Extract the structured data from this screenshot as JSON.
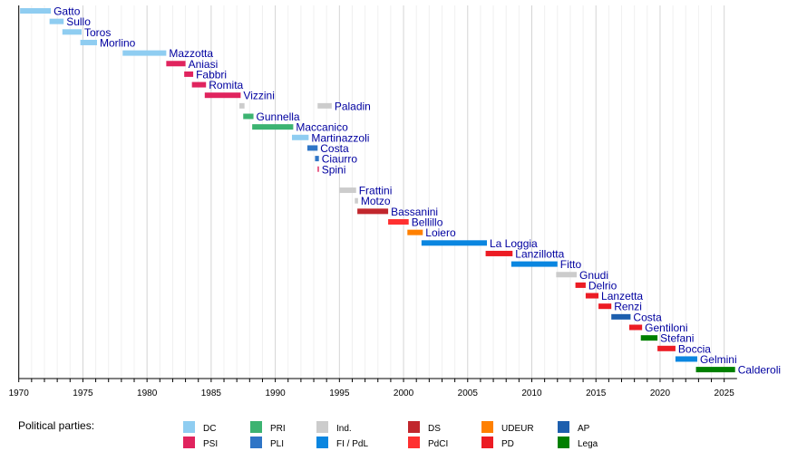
{
  "chart_data": {
    "type": "timeline",
    "xlim": [
      1970,
      2026
    ],
    "x_ticks": [
      1970,
      1975,
      1980,
      1985,
      1990,
      1995,
      2000,
      2005,
      2010,
      2015,
      2020,
      2025
    ],
    "grid": "vertical, yearly",
    "legend_title": "Political parties:",
    "legend_placement": "bottom",
    "parties": [
      {
        "name": "DC",
        "color": "#8fcdf1"
      },
      {
        "name": "PSI",
        "color": "#e0245e"
      },
      {
        "name": "PRI",
        "color": "#3cb371"
      },
      {
        "name": "PLI",
        "color": "#2f75c6"
      },
      {
        "name": "Ind.",
        "color": "#cccccc"
      },
      {
        "name": "FI / PdL",
        "color": "#0a86e0"
      },
      {
        "name": "DS",
        "color": "#c1272d"
      },
      {
        "name": "PdCI",
        "color": "#ff3030"
      },
      {
        "name": "UDEUR",
        "color": "#ff8000"
      },
      {
        "name": "PD",
        "color": "#ec1c24"
      },
      {
        "name": "AP",
        "color": "#1d5fae"
      },
      {
        "name": "Lega",
        "color": "#008000"
      }
    ],
    "rows": [
      {
        "name": "Gatto",
        "terms": [
          {
            "start": 1970.1,
            "end": 1972.5,
            "party": "DC"
          }
        ]
      },
      {
        "name": "Sullo",
        "terms": [
          {
            "start": 1972.4,
            "end": 1973.5,
            "party": "DC"
          }
        ]
      },
      {
        "name": "Toros",
        "terms": [
          {
            "start": 1973.4,
            "end": 1974.9,
            "party": "DC"
          }
        ]
      },
      {
        "name": "Morlino",
        "terms": [
          {
            "start": 1974.8,
            "end": 1976.1,
            "party": "DC"
          }
        ]
      },
      {
        "name": "Mazzotta",
        "terms": [
          {
            "start": 1978.1,
            "end": 1981.5,
            "party": "DC"
          }
        ]
      },
      {
        "name": "Aniasi",
        "terms": [
          {
            "start": 1981.5,
            "end": 1983.0,
            "party": "PSI"
          }
        ]
      },
      {
        "name": "Fabbri",
        "terms": [
          {
            "start": 1982.9,
            "end": 1983.6,
            "party": "PSI"
          }
        ]
      },
      {
        "name": "Romita",
        "terms": [
          {
            "start": 1983.5,
            "end": 1984.6,
            "party": "PSI"
          }
        ]
      },
      {
        "name": "Vizzini",
        "terms": [
          {
            "start": 1984.5,
            "end": 1987.3,
            "party": "PSI"
          }
        ]
      },
      {
        "name": "Paladin",
        "terms": [
          {
            "start": 1987.2,
            "end": 1987.6,
            "party": "Ind."
          },
          {
            "start": 1993.3,
            "end": 1994.4,
            "party": "Ind."
          }
        ]
      },
      {
        "name": "Gunnella",
        "terms": [
          {
            "start": 1987.5,
            "end": 1988.3,
            "party": "PRI"
          }
        ]
      },
      {
        "name": "Maccanico",
        "terms": [
          {
            "start": 1988.2,
            "end": 1991.4,
            "party": "PRI"
          }
        ]
      },
      {
        "name": "Martinazzoli",
        "terms": [
          {
            "start": 1991.3,
            "end": 1992.6,
            "party": "DC"
          }
        ]
      },
      {
        "name": "Costa",
        "terms": [
          {
            "start": 1992.5,
            "end": 1993.3,
            "party": "PLI"
          }
        ]
      },
      {
        "name": "Ciaurro",
        "terms": [
          {
            "start": 1993.1,
            "end": 1993.4,
            "party": "PLI"
          }
        ]
      },
      {
        "name": "Spini",
        "terms": [
          {
            "start": 1993.3,
            "end": 1993.4,
            "party": "PSI"
          }
        ]
      },
      {
        "name": "",
        "terms": []
      },
      {
        "name": "Frattini",
        "terms": [
          {
            "start": 1995.0,
            "end": 1996.3,
            "party": "Ind."
          }
        ]
      },
      {
        "name": "Motzo",
        "terms": [
          {
            "start": 1996.2,
            "end": 1996.45,
            "party": "Ind."
          }
        ]
      },
      {
        "name": "Bassanini",
        "terms": [
          {
            "start": 1996.4,
            "end": 1998.8,
            "party": "DS"
          }
        ]
      },
      {
        "name": "Bellillo",
        "terms": [
          {
            "start": 1998.8,
            "end": 2000.4,
            "party": "PdCI"
          }
        ]
      },
      {
        "name": "Loiero",
        "terms": [
          {
            "start": 2000.3,
            "end": 2001.5,
            "party": "UDEUR"
          }
        ]
      },
      {
        "name": "La Loggia",
        "terms": [
          {
            "start": 2001.4,
            "end": 2006.5,
            "party": "FI / PdL"
          }
        ]
      },
      {
        "name": "Lanzillotta",
        "terms": [
          {
            "start": 2006.4,
            "end": 2008.5,
            "party": "PD"
          }
        ]
      },
      {
        "name": "Fitto",
        "terms": [
          {
            "start": 2008.4,
            "end": 2012.0,
            "party": "FI / PdL"
          }
        ]
      },
      {
        "name": "Gnudi",
        "terms": [
          {
            "start": 2011.9,
            "end": 2013.5,
            "party": "Ind."
          }
        ]
      },
      {
        "name": "Delrio",
        "terms": [
          {
            "start": 2013.4,
            "end": 2014.2,
            "party": "PD"
          }
        ]
      },
      {
        "name": "Lanzetta",
        "terms": [
          {
            "start": 2014.2,
            "end": 2015.2,
            "party": "PD"
          }
        ]
      },
      {
        "name": "Renzi",
        "terms": [
          {
            "start": 2015.2,
            "end": 2016.2,
            "party": "PD"
          }
        ]
      },
      {
        "name": "Costa",
        "terms": [
          {
            "start": 2016.2,
            "end": 2017.7,
            "party": "AP"
          }
        ]
      },
      {
        "name": "Gentiloni",
        "terms": [
          {
            "start": 2017.6,
            "end": 2018.6,
            "party": "PD"
          }
        ]
      },
      {
        "name": "Stefani",
        "terms": [
          {
            "start": 2018.5,
            "end": 2019.8,
            "party": "Lega"
          }
        ]
      },
      {
        "name": "Boccia",
        "terms": [
          {
            "start": 2019.8,
            "end": 2021.2,
            "party": "PD"
          }
        ]
      },
      {
        "name": "Gelmini",
        "terms": [
          {
            "start": 2021.2,
            "end": 2022.9,
            "party": "FI / PdL"
          }
        ]
      },
      {
        "name": "Calderoli",
        "terms": [
          {
            "start": 2022.8,
            "end": 2025.85,
            "party": "Lega"
          }
        ]
      }
    ]
  }
}
